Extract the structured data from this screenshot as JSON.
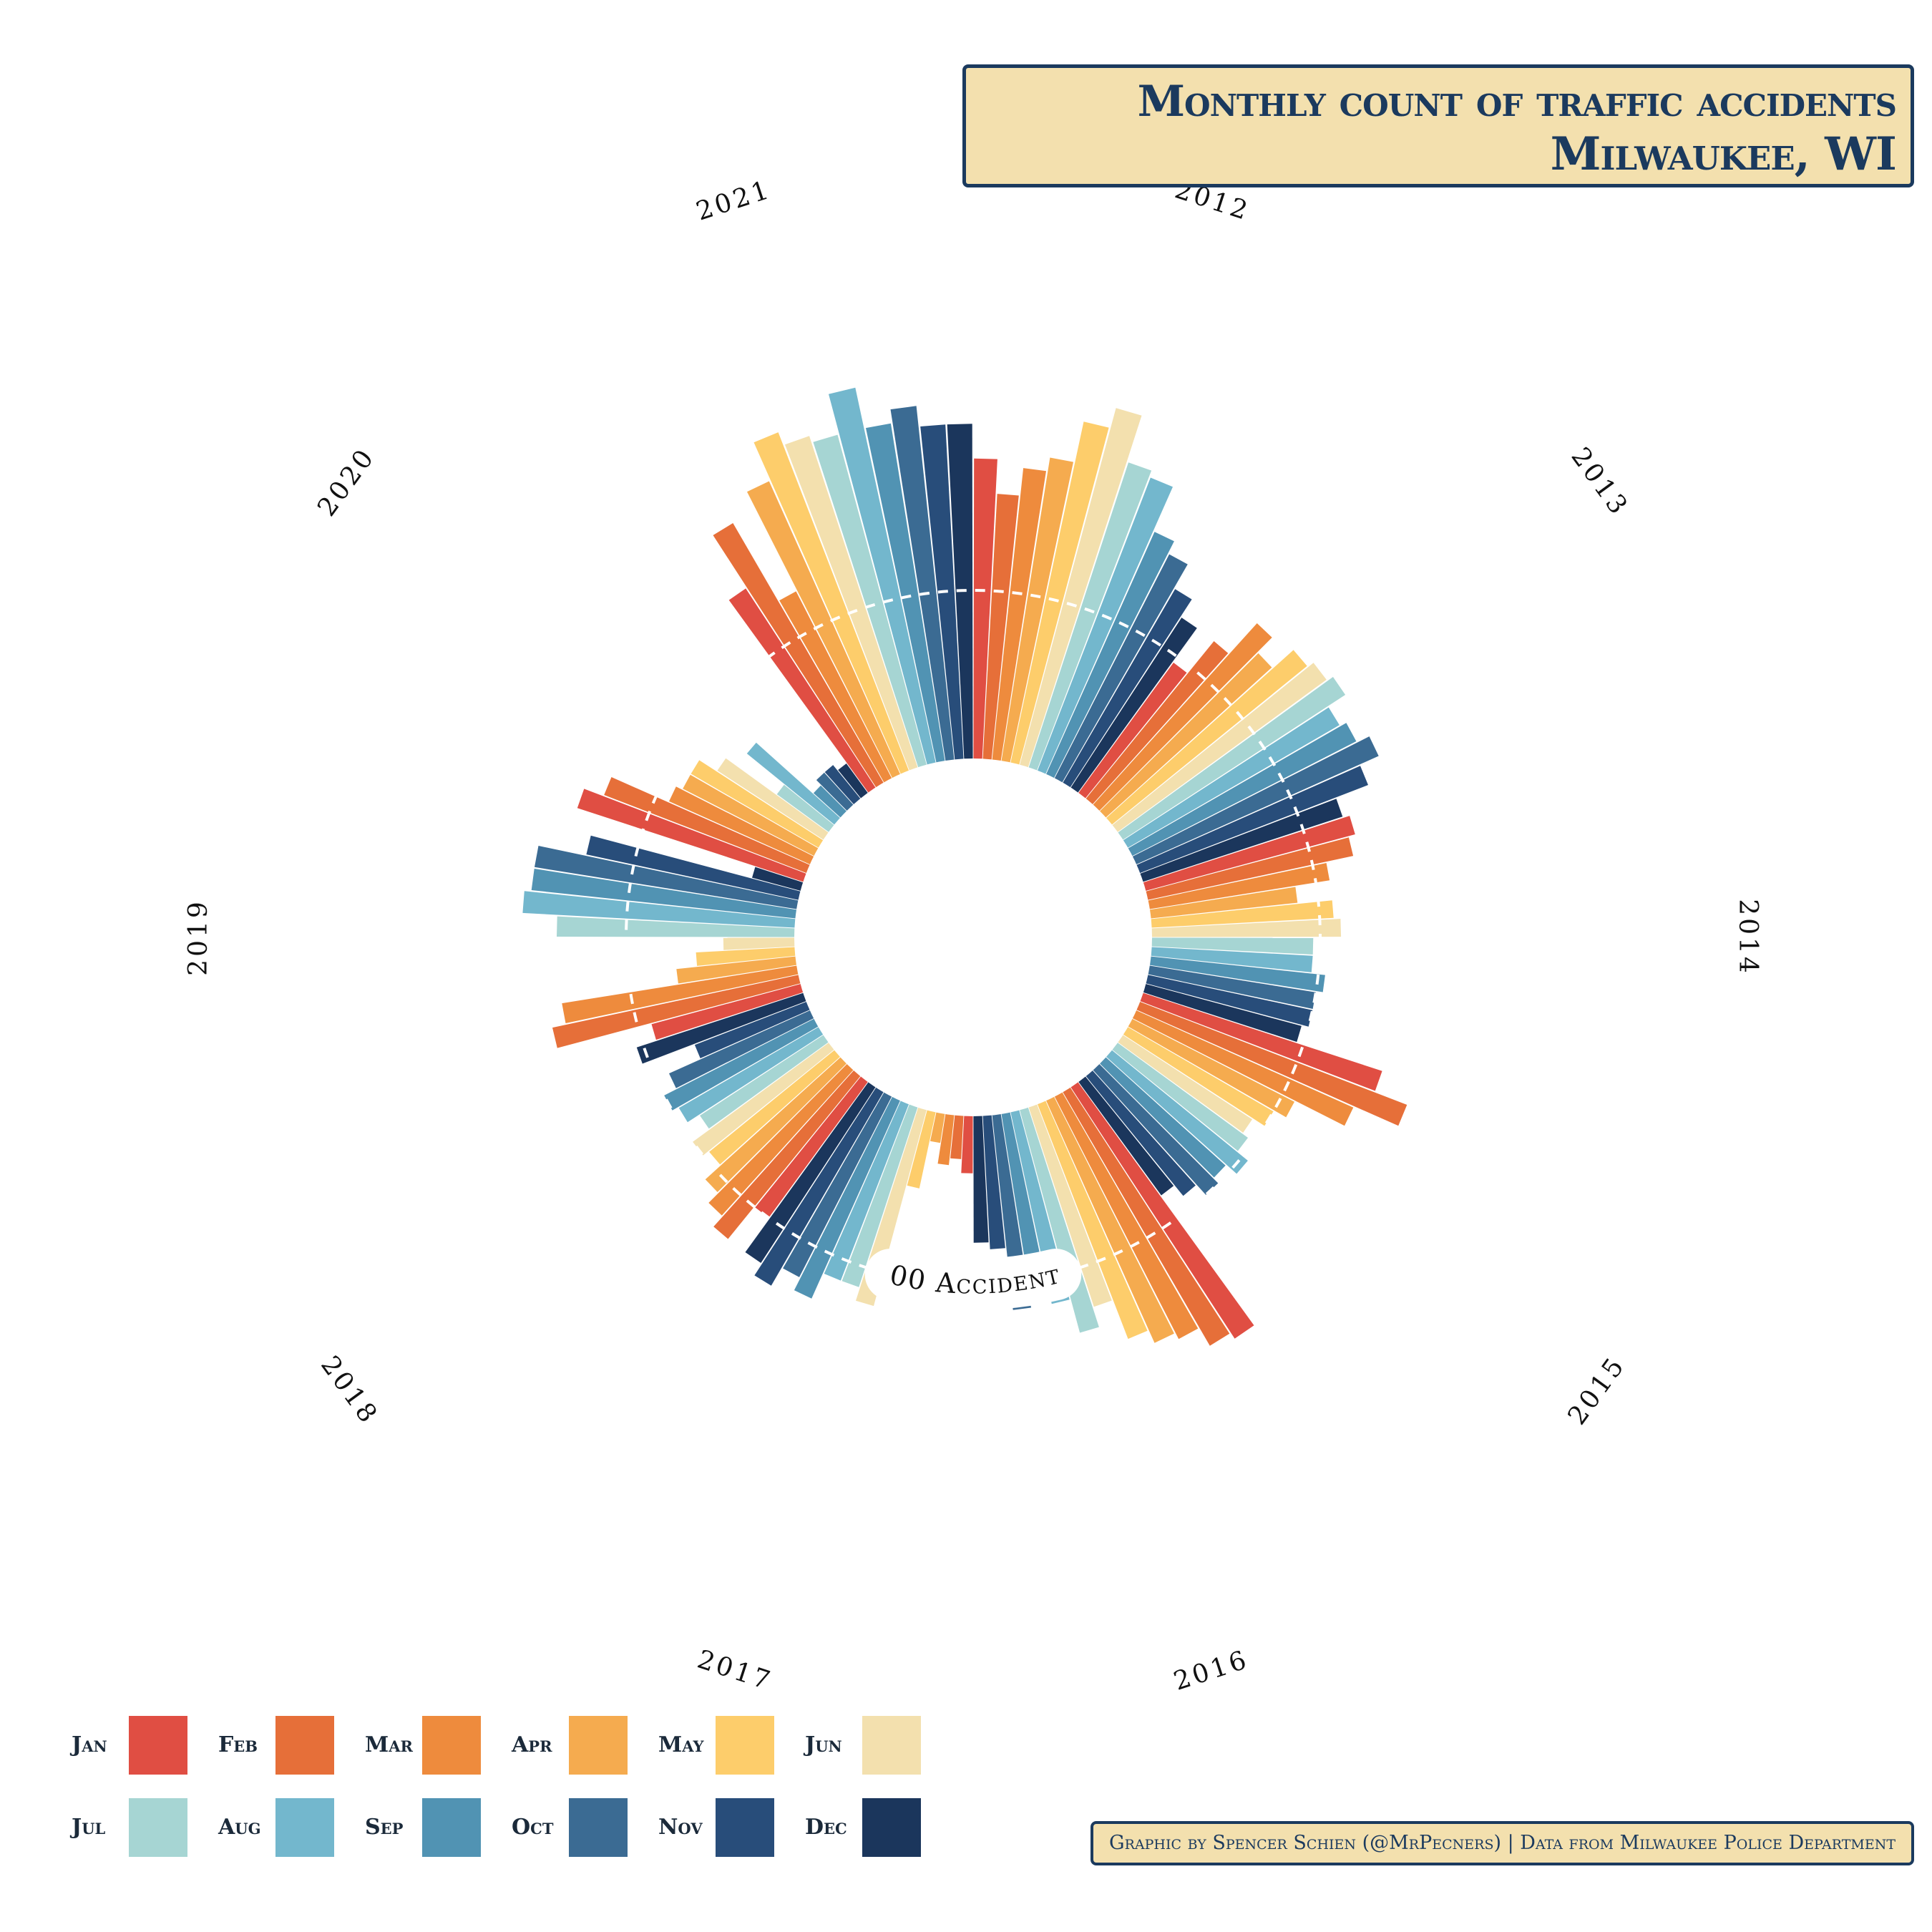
{
  "title": {
    "line1": "Monthly count of traffic accidents",
    "line2": "Milwaukee, WI"
  },
  "credit": "Graphic by Spencer Schien (@MrPecners) | Data from Milwaukee Police Department",
  "reference_label": "500 Accidents",
  "chart_data": {
    "type": "bar",
    "layout": "radial",
    "title": "Monthly count of traffic accidents Milwaukee, WI",
    "reference_line": 500,
    "years": [
      "2012",
      "2013",
      "2014",
      "2015",
      "2016",
      "2017",
      "2018",
      "2019",
      "2020",
      "2021"
    ],
    "months": [
      "Jan",
      "Feb",
      "Mar",
      "Apr",
      "May",
      "Jun",
      "Jul",
      "Aug",
      "Sep",
      "Oct",
      "Nov",
      "Dec"
    ],
    "colors": [
      "#e04e43",
      "#e66f39",
      "#ee8b3d",
      "#f5ab4f",
      "#fdcd6b",
      "#f3e0ae",
      "#a6d5d3",
      "#73b7cd",
      "#5193b3",
      "#3b6b93",
      "#284d7a",
      "#1b365c"
    ],
    "series": [
      {
        "year": "2012",
        "values": [
          690,
          640,
          680,
          700,
          760,
          790,
          720,
          710,
          640,
          620,
          580,
          550
        ]
      },
      {
        "year": "2013",
        "values": [
          490,
          550,
          610,
          580,
          620,
          630,
          640,
          610,
          620,
          640,
          610,
          560
        ]
      },
      {
        "year": "2014",
        "values": [
          570,
          560,
          520,
          470,
          520,
          530,
          490,
          490,
          510,
          500,
          500,
          490
        ]
      },
      {
        "year": "2015",
        "values": [
          620,
          670,
          600,
          520,
          500,
          480,
          490,
          510,
          490,
          500,
          480,
          460
        ]
      },
      {
        "year": "2016",
        "values": [
          690,
          680,
          650,
          640,
          620,
          560,
          590,
          540,
          510,
          540,
          450,
          440
        ]
      },
      {
        "year": "2017",
        "values": [
          340,
          320,
          330,
          300,
          370,
          550,
          530,
          530,
          570,
          550,
          580,
          560
        ]
      },
      {
        "year": "2018",
        "values": [
          500,
          560,
          540,
          520,
          490,
          500,
          470,
          490,
          500,
          480,
          430,
          510
        ]
      },
      {
        "year": "2019",
        "values": [
          480,
          620,
          600,
          430,
          400,
          360,
          600,
          650,
          640,
          640,
          570,
          330
        ]
      },
      {
        "year": "2020",
        "values": [
          600,
          570,
          480,
          470,
          470,
          440,
          350,
          420,
          310,
          320,
          320,
          310
        ]
      },
      {
        "year": "2021",
        "values": [
          600,
          690,
          560,
          720,
          780,
          760,
          750,
          810,
          750,
          770,
          740,
          740
        ]
      }
    ]
  },
  "legend": [
    {
      "label": "Jan",
      "color": "#e04e43"
    },
    {
      "label": "Feb",
      "color": "#e66f39"
    },
    {
      "label": "Mar",
      "color": "#ee8b3d"
    },
    {
      "label": "Apr",
      "color": "#f5ab4f"
    },
    {
      "label": "May",
      "color": "#fdcd6b"
    },
    {
      "label": "Jun",
      "color": "#f3e0ae"
    },
    {
      "label": "Jul",
      "color": "#a6d5d3"
    },
    {
      "label": "Aug",
      "color": "#73b7cd"
    },
    {
      "label": "Sep",
      "color": "#5193b3"
    },
    {
      "label": "Oct",
      "color": "#3b6b93"
    },
    {
      "label": "Nov",
      "color": "#284d7a"
    },
    {
      "label": "Dec",
      "color": "#1b365c"
    }
  ]
}
